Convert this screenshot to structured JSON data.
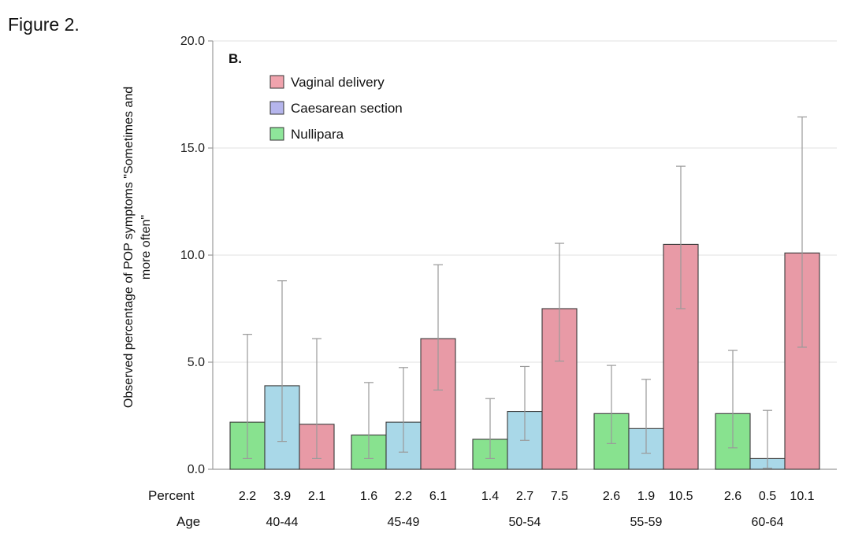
{
  "figure_title": "Figure 2.",
  "chart_data": {
    "type": "bar",
    "panel_label": "B.",
    "ylabel_lines": [
      "Observed percentage of POP symptoms \"Sometimes and",
      "more often\""
    ],
    "ylim": [
      0,
      20
    ],
    "yticks": [
      "0.0",
      "5.0",
      "10.0",
      "15.0",
      "20.0"
    ],
    "grid": true,
    "legend_position": "top-left",
    "legend_order": [
      "vaginal",
      "caesarean",
      "nullipara"
    ],
    "categories": [
      "40-44",
      "45-49",
      "50-54",
      "55-59",
      "60-64"
    ],
    "series": [
      {
        "key": "nullipara",
        "name": "Nullipara",
        "color": "#88e28f",
        "values": [
          2.2,
          1.6,
          1.4,
          2.6,
          2.6
        ],
        "ci_low": [
          0.5,
          0.5,
          0.5,
          1.2,
          1.0
        ],
        "ci_high": [
          6.3,
          4.05,
          3.3,
          4.85,
          5.55
        ]
      },
      {
        "key": "caesarean",
        "name": "Caesarean section",
        "color": "#a9d8e8",
        "values": [
          3.9,
          2.2,
          2.7,
          1.9,
          0.5
        ],
        "ci_low": [
          1.3,
          0.8,
          1.35,
          0.75,
          0.05
        ],
        "ci_high": [
          8.8,
          4.75,
          4.8,
          4.2,
          2.75
        ]
      },
      {
        "key": "vaginal",
        "name": "Vaginal delivery",
        "color": "#e89aa6",
        "values": [
          2.1,
          6.1,
          7.5,
          10.5,
          10.1
        ],
        "ci_low": [
          0.5,
          3.7,
          5.05,
          7.5,
          5.7
        ],
        "ci_high": [
          6.1,
          9.55,
          10.55,
          14.15,
          16.45
        ]
      }
    ],
    "legend_swatch_colors": {
      "vaginal": "#f0a3ad",
      "caesarean": "#b5b5ec",
      "nullipara": "#8ee69a"
    },
    "percent_row_label": "Percent",
    "age_row_label": "Age",
    "percent_labels": [
      [
        "2.2",
        "3.9",
        "2.1"
      ],
      [
        "1.6",
        "2.2",
        "6.1"
      ],
      [
        "1.4",
        "2.7",
        "7.5"
      ],
      [
        "2.6",
        "1.9",
        "10.5"
      ],
      [
        "2.6",
        "0.5",
        "10.1"
      ]
    ]
  }
}
